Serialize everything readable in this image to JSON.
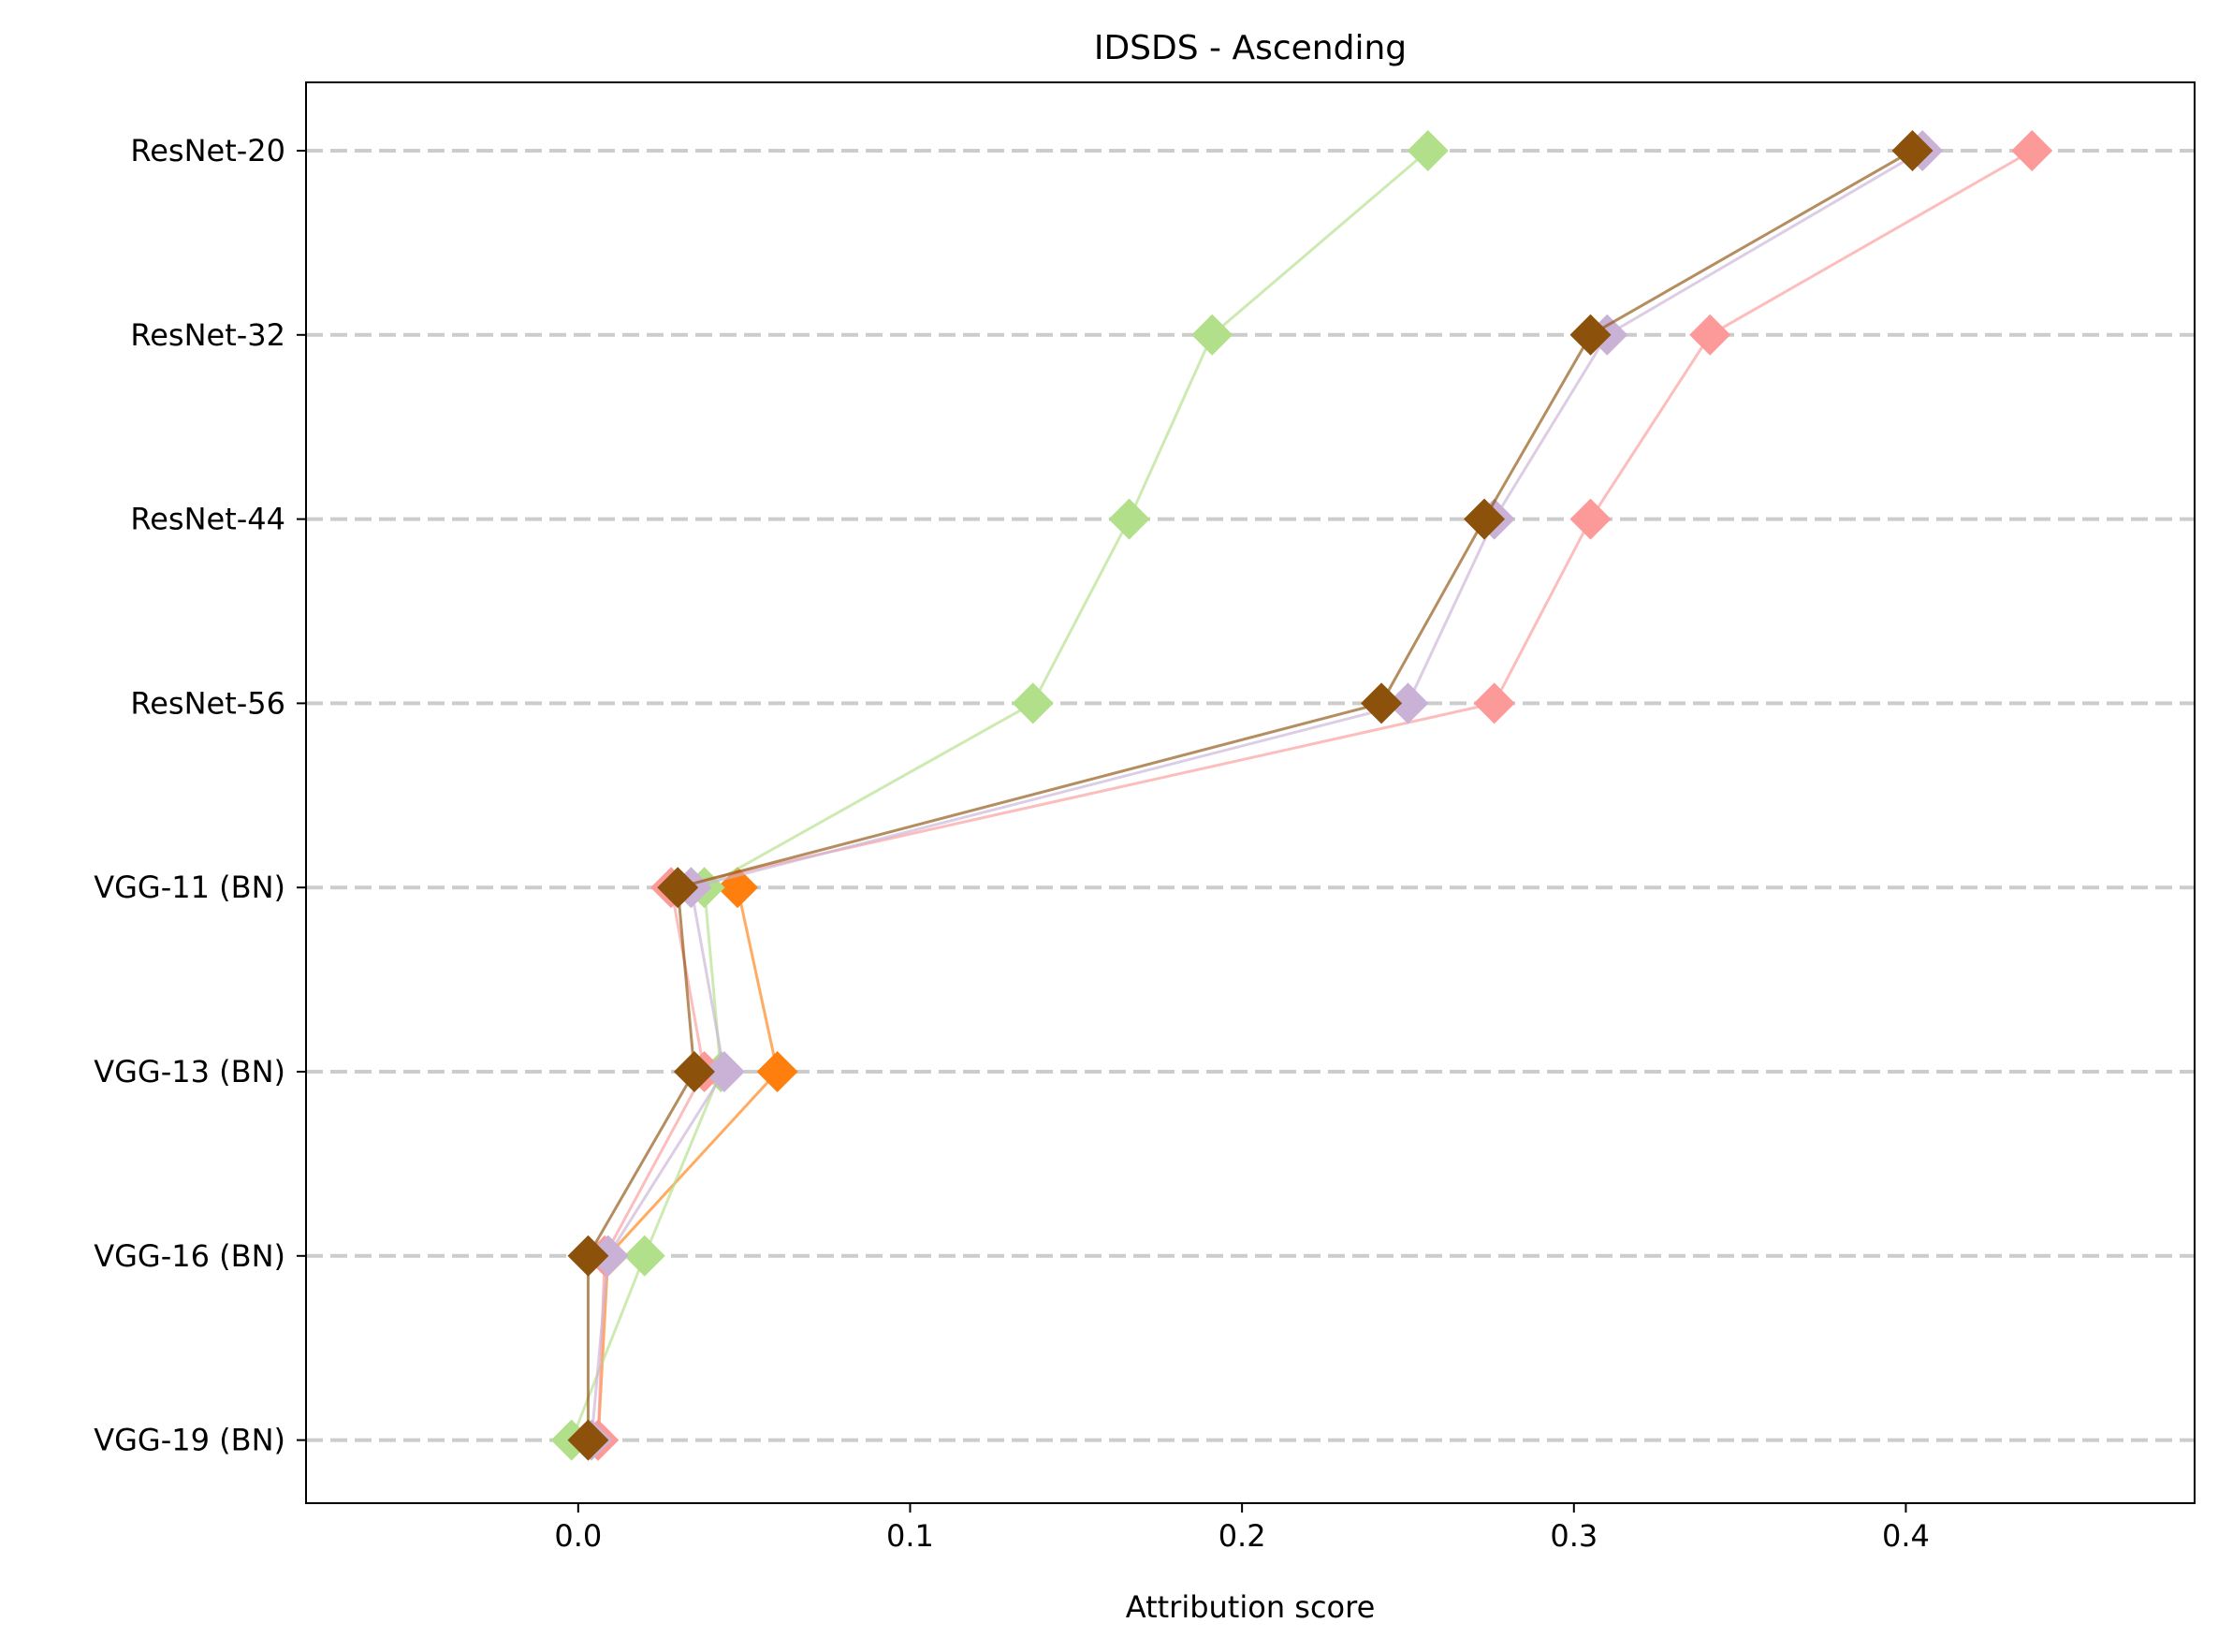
{
  "chart_data": {
    "type": "line",
    "title": "IDSDS - Ascending",
    "xlabel": "Attribution score",
    "ylabel": "",
    "xlim": [
      -0.082,
      0.487
    ],
    "x_ticks": [
      0.0,
      0.1,
      0.2,
      0.3,
      0.4
    ],
    "x_tick_labels": [
      "0.0",
      "0.1",
      "0.2",
      "0.3",
      "0.4"
    ],
    "categories": [
      "ResNet-20",
      "ResNet-32",
      "ResNet-44",
      "ResNet-56",
      "VGG-11 (BN)",
      "VGG-13 (BN)",
      "VGG-16 (BN)",
      "VGG-19 (BN)"
    ],
    "grid": "horizontal dashed",
    "legend": "none",
    "series": [
      {
        "color": "#ff7f0e",
        "values": [
          null,
          null,
          null,
          null,
          0.048,
          0.06,
          0.009,
          0.006
        ]
      },
      {
        "color": "#b2df8a",
        "values": [
          0.256,
          0.191,
          0.166,
          0.137,
          0.038,
          0.043,
          0.02,
          -0.002
        ]
      },
      {
        "color": "#fb9a99",
        "values": [
          0.438,
          0.341,
          0.305,
          0.276,
          0.028,
          0.038,
          0.008,
          0.006
        ]
      },
      {
        "color": "#cab2d6",
        "values": [
          0.405,
          0.31,
          0.276,
          0.25,
          0.034,
          0.044,
          0.009,
          0.004
        ]
      },
      {
        "color": "#8c510a",
        "values": [
          0.402,
          0.305,
          0.273,
          0.242,
          0.03,
          0.035,
          0.003,
          0.003
        ]
      }
    ]
  }
}
